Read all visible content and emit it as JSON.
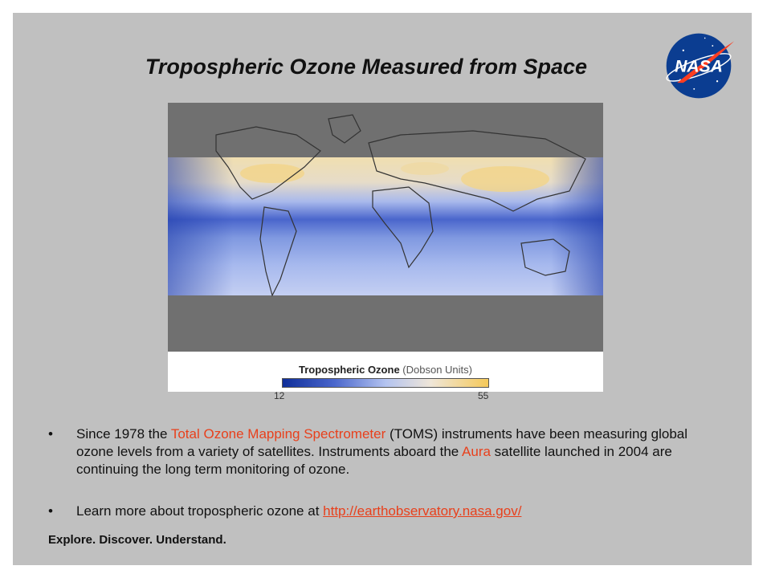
{
  "slide": {
    "title": "Tropospheric Ozone Measured from Space",
    "logo_text": "NASA"
  },
  "figure": {
    "legend_title": "Tropospheric Ozone",
    "legend_unit": "(Dobson Units)",
    "scale_min": "12",
    "scale_max": "55",
    "colors": {
      "low": "#0f2e99",
      "mid": "#b3c3f0",
      "high": "#f5c95a",
      "no_data": "#707070"
    }
  },
  "bullets": {
    "b1_part1": "Since 1978 the ",
    "b1_hl1": "Total Ozone Mapping Spectrometer",
    "b1_part2": " (TOMS) instruments have been measuring global ozone levels from a variety of satellites. Instruments aboard the ",
    "b1_hl2": "Aura",
    "b1_part3": " satellite launched in 2004 are continuing the long term monitoring of ozone.",
    "b2_text": "Learn more about tropospheric ozone at ",
    "b2_link": "http://earthobservatory.nasa.gov/",
    "bullet_symbol": "•"
  },
  "footer": {
    "tagline": "Explore. Discover. Understand."
  }
}
